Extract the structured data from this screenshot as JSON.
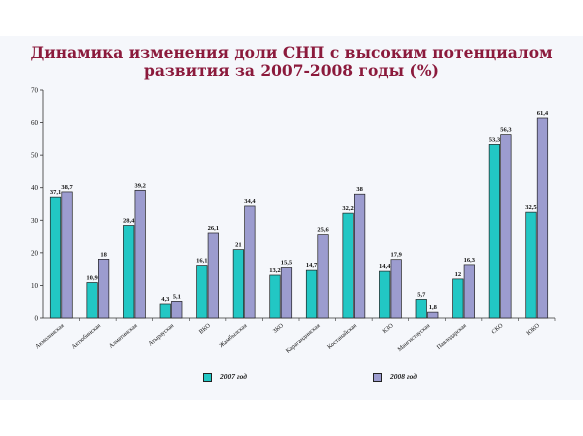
{
  "title_line1": "Динамика изменения доли СНП с высоким потенциалом",
  "title_line2": "развития за 2007-2008 годы (%)",
  "colors": {
    "title": "#8b1a3c",
    "series2007": "#22c7c4",
    "series2008": "#9c9ccf",
    "panel": "#f5f7fb"
  },
  "chart_data": {
    "type": "bar",
    "title": "Динамика изменения доли СНП с высоким потенциалом развития за 2007-2008 годы (%)",
    "xlabel": "",
    "ylabel": "",
    "ylim": [
      0,
      70
    ],
    "yticks": [
      0,
      10,
      20,
      30,
      40,
      50,
      60,
      70
    ],
    "grid": false,
    "legend_position": "bottom",
    "categories": [
      "Акмолинская",
      "Актюбинская",
      "Алматинская",
      "Атырауская",
      "ВКО",
      "Жамбылская",
      "ЗКО",
      "Карагандинская",
      "Костанайская",
      "КЗО",
      "Мангистауская",
      "Павлодарская",
      "СКО",
      "ЮКО"
    ],
    "series": [
      {
        "name": "2007 год",
        "values": [
          37.1,
          10.9,
          28.4,
          4.3,
          16.1,
          21,
          13.2,
          14.7,
          32.2,
          14.4,
          5.7,
          12,
          53.3,
          32.5
        ],
        "labels": [
          "37,1",
          "10,9",
          "28,4",
          "4,3",
          "16,1",
          "21",
          "13,2",
          "14,7",
          "32,2",
          "14,4",
          "5,7",
          "12",
          "53,3",
          "32,5"
        ]
      },
      {
        "name": "2008 год",
        "values": [
          38.7,
          18,
          39.2,
          5.1,
          26.1,
          34.4,
          15.5,
          25.6,
          38,
          17.9,
          1.8,
          16.3,
          56.3,
          61.4
        ],
        "labels": [
          "38,7",
          "18",
          "39,2",
          "5,1",
          "26,1",
          "34,4",
          "15,5",
          "25,6",
          "38",
          "17,9",
          "1,8",
          "16,3",
          "56,3",
          "61,4"
        ]
      }
    ]
  }
}
